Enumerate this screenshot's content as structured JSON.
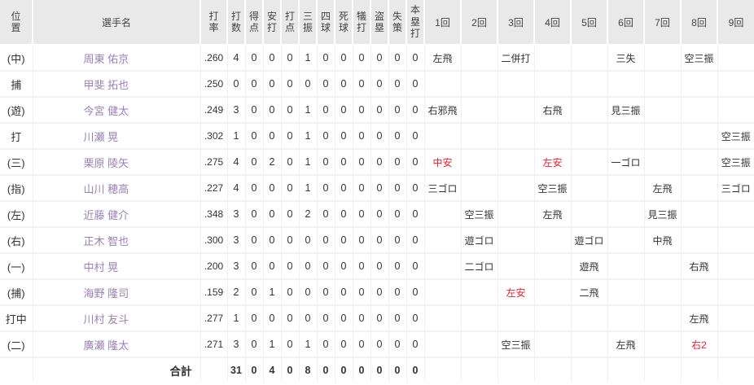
{
  "table": {
    "headers": {
      "position": "位置",
      "player": "選手名",
      "avg": "打率",
      "stats": [
        "打数",
        "得点",
        "安打",
        "打点",
        "三振",
        "四球",
        "死球",
        "犠打",
        "盗塁",
        "失策",
        "本塁打"
      ],
      "innings": [
        "1回",
        "2回",
        "3回",
        "4回",
        "5回",
        "6回",
        "7回",
        "8回",
        "9回"
      ]
    },
    "rows": [
      {
        "pos": "(中)",
        "name": "周東 佑京",
        "avg": ".260",
        "stats": [
          "4",
          "0",
          "0",
          "0",
          "1",
          "0",
          "0",
          "0",
          "0",
          "0",
          "0"
        ],
        "innings": [
          "左飛",
          "",
          "二併打",
          "",
          "",
          "三失",
          "",
          "空三振",
          ""
        ],
        "red": []
      },
      {
        "pos": "捕",
        "name": "甲斐 拓也",
        "avg": ".250",
        "stats": [
          "0",
          "0",
          "0",
          "0",
          "0",
          "0",
          "0",
          "0",
          "0",
          "0",
          "0"
        ],
        "innings": [
          "",
          "",
          "",
          "",
          "",
          "",
          "",
          "",
          ""
        ],
        "red": []
      },
      {
        "pos": "(遊)",
        "name": "今宮 健太",
        "avg": ".249",
        "stats": [
          "3",
          "0",
          "0",
          "0",
          "1",
          "0",
          "0",
          "0",
          "0",
          "0",
          "0"
        ],
        "innings": [
          "右邪飛",
          "",
          "",
          "右飛",
          "",
          "見三振",
          "",
          "",
          ""
        ],
        "red": []
      },
      {
        "pos": "打",
        "name": "川瀬 晃",
        "avg": ".302",
        "stats": [
          "1",
          "0",
          "0",
          "0",
          "1",
          "0",
          "0",
          "0",
          "0",
          "0",
          "0"
        ],
        "innings": [
          "",
          "",
          "",
          "",
          "",
          "",
          "",
          "",
          "空三振"
        ],
        "red": []
      },
      {
        "pos": "(三)",
        "name": "栗原 陵矢",
        "avg": ".275",
        "stats": [
          "4",
          "0",
          "2",
          "0",
          "1",
          "0",
          "0",
          "0",
          "0",
          "0",
          "0"
        ],
        "innings": [
          "中安",
          "",
          "",
          "左安",
          "",
          "一ゴロ",
          "",
          "",
          "空三振"
        ],
        "red": [
          0,
          3
        ]
      },
      {
        "pos": "(指)",
        "name": "山川 穂高",
        "avg": ".227",
        "stats": [
          "4",
          "0",
          "0",
          "0",
          "1",
          "0",
          "0",
          "0",
          "0",
          "0",
          "0"
        ],
        "innings": [
          "三ゴロ",
          "",
          "",
          "空三振",
          "",
          "",
          "左飛",
          "",
          "三ゴロ"
        ],
        "red": []
      },
      {
        "pos": "(左)",
        "name": "近藤 健介",
        "avg": ".348",
        "stats": [
          "3",
          "0",
          "0",
          "0",
          "2",
          "0",
          "0",
          "0",
          "0",
          "0",
          "0"
        ],
        "innings": [
          "",
          "空三振",
          "",
          "左飛",
          "",
          "",
          "見三振",
          "",
          ""
        ],
        "red": []
      },
      {
        "pos": "(右)",
        "name": "正木 智也",
        "avg": ".300",
        "stats": [
          "3",
          "0",
          "0",
          "0",
          "0",
          "0",
          "0",
          "0",
          "0",
          "0",
          "0"
        ],
        "innings": [
          "",
          "遊ゴロ",
          "",
          "",
          "遊ゴロ",
          "",
          "中飛",
          "",
          ""
        ],
        "red": []
      },
      {
        "pos": "(一)",
        "name": "中村 晃",
        "avg": ".200",
        "stats": [
          "3",
          "0",
          "0",
          "0",
          "0",
          "0",
          "0",
          "0",
          "0",
          "0",
          "0"
        ],
        "innings": [
          "",
          "二ゴロ",
          "",
          "",
          "遊飛",
          "",
          "",
          "右飛",
          ""
        ],
        "red": []
      },
      {
        "pos": "(捕)",
        "name": "海野 隆司",
        "avg": ".159",
        "stats": [
          "2",
          "0",
          "1",
          "0",
          "0",
          "0",
          "0",
          "0",
          "0",
          "0",
          "0"
        ],
        "innings": [
          "",
          "",
          "左安",
          "",
          "二飛",
          "",
          "",
          "",
          ""
        ],
        "red": [
          2
        ]
      },
      {
        "pos": "打中",
        "name": "川村 友斗",
        "avg": ".277",
        "stats": [
          "1",
          "0",
          "0",
          "0",
          "0",
          "0",
          "0",
          "0",
          "0",
          "0",
          "0"
        ],
        "innings": [
          "",
          "",
          "",
          "",
          "",
          "",
          "",
          "左飛",
          ""
        ],
        "red": []
      },
      {
        "pos": "(二)",
        "name": "廣瀬 隆太",
        "avg": ".271",
        "stats": [
          "3",
          "0",
          "1",
          "0",
          "1",
          "0",
          "0",
          "0",
          "0",
          "0",
          "0"
        ],
        "innings": [
          "",
          "",
          "空三振",
          "",
          "",
          "左飛",
          "",
          "右2",
          ""
        ],
        "red": [
          7
        ]
      }
    ],
    "total": {
      "label": "合計",
      "avg": "",
      "stats": [
        "31",
        "0",
        "4",
        "0",
        "8",
        "0",
        "0",
        "0",
        "0",
        "0",
        "0"
      ],
      "innings": [
        "",
        "",
        "",
        "",
        "",
        "",
        "",
        "",
        ""
      ]
    }
  },
  "colors": {
    "header_bg": "#e9e9e9",
    "row_bg": "#ffffff",
    "grid_line": "#efefef",
    "player_link_purple": "#9a7fb2",
    "text": "#333333",
    "hit_red": "#e8232e"
  }
}
